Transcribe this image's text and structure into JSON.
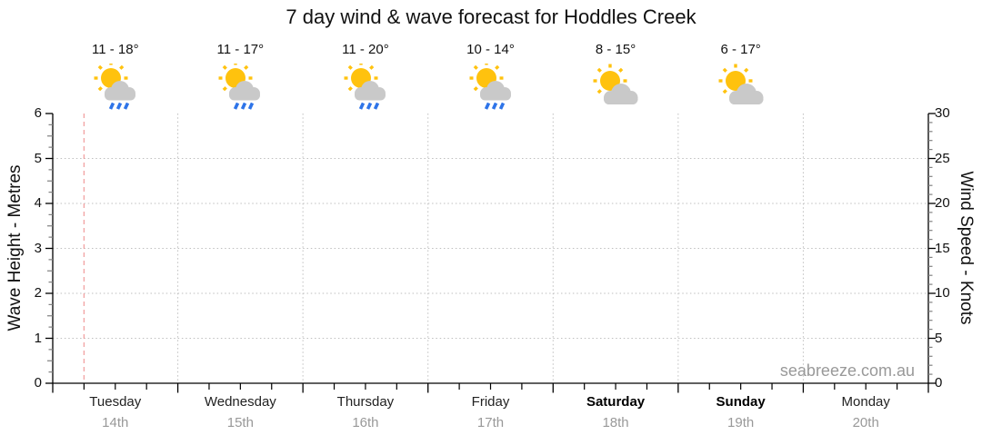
{
  "title": "7 day wind & wave forecast for Hoddles Creek",
  "watermark": "seabreeze.com.au",
  "chart_data": {
    "type": "line",
    "title": "7 day wind & wave forecast for Hoddles Creek",
    "series": [],
    "left_axis": {
      "label": "Wave Height - Metres",
      "min": 0,
      "max": 6,
      "major_ticks": [
        0,
        1,
        2,
        3,
        4,
        5,
        6
      ],
      "minor_step": 0.25,
      "gridlines_at": [
        1,
        2,
        3,
        4,
        5
      ]
    },
    "right_axis": {
      "label": "Wind Speed - Knots",
      "min": 0,
      "max": 30,
      "major_ticks": [
        0,
        5,
        10,
        15,
        20,
        25,
        30
      ],
      "minor_step": 1
    },
    "x_axis": {
      "minor_ticks_per_day": 4,
      "gridlines_at_day_boundaries": true
    },
    "days": [
      {
        "name": "Tuesday",
        "date": "14th",
        "temp_range": "11 - 18°",
        "temp_min": 11,
        "temp_max": 18,
        "icon": "sun-cloud-rain",
        "weekend": false
      },
      {
        "name": "Wednesday",
        "date": "15th",
        "temp_range": "11 - 17°",
        "temp_min": 11,
        "temp_max": 17,
        "icon": "sun-cloud-rain",
        "weekend": false
      },
      {
        "name": "Thursday",
        "date": "16th",
        "temp_range": "11 - 20°",
        "temp_min": 11,
        "temp_max": 20,
        "icon": "sun-cloud-rain",
        "weekend": false
      },
      {
        "name": "Friday",
        "date": "17th",
        "temp_range": "10 - 14°",
        "temp_min": 10,
        "temp_max": 14,
        "icon": "sun-cloud-rain",
        "weekend": false
      },
      {
        "name": "Saturday",
        "date": "18th",
        "temp_range": "8 - 15°",
        "temp_min": 8,
        "temp_max": 15,
        "icon": "sun-cloud",
        "weekend": true
      },
      {
        "name": "Sunday",
        "date": "19th",
        "temp_range": "6 - 17°",
        "temp_min": 6,
        "temp_max": 17,
        "icon": "sun-cloud",
        "weekend": true
      },
      {
        "name": "Monday",
        "date": "20th",
        "temp_range": "",
        "icon": "none",
        "weekend": false
      }
    ],
    "now_marker": {
      "day_index": 0,
      "fraction": 0.25
    },
    "legend": false,
    "grid": true,
    "colors": {
      "sun": "#FFC20E",
      "cloud": "#C9C9C9",
      "rain": "#2E74E8",
      "grid": "#bfbfbf",
      "now_marker": "#F2A2A2",
      "axis": "#000000",
      "minor_tick": "#808080",
      "date_text": "#999999"
    }
  }
}
